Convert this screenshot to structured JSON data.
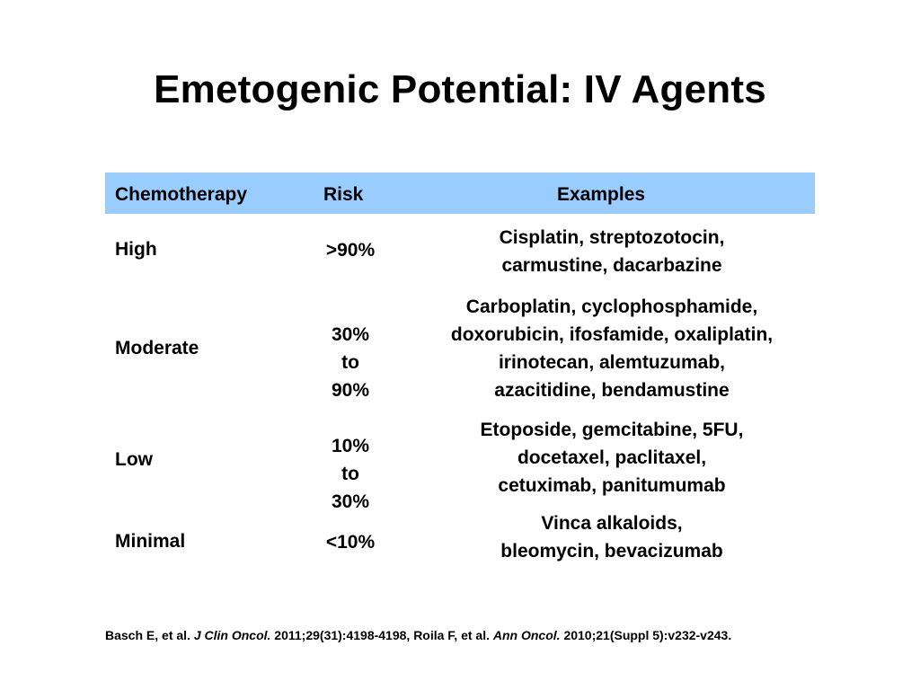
{
  "slide": {
    "title": "Emetogenic Potential: IV Agents"
  },
  "table": {
    "header_color": "#99ccff",
    "headers": {
      "chemotherapy": "Chemotherapy",
      "risk": "Risk",
      "examples": "Examples"
    },
    "rows": [
      {
        "level": "High",
        "risk": ">90%",
        "examples": "Cisplatin, streptozotocin,\ncarmustine, dacarbazine"
      },
      {
        "level": "Moderate",
        "risk": "30%\nto\n90%",
        "examples": "Carboplatin, cyclophosphamide,\ndoxorubicin, ifosfamide, oxaliplatin,\nirinotecan, alemtuzumab,\nazacitidine, bendamustine"
      },
      {
        "level": "Low",
        "risk": "10%\nto\n30%",
        "examples": "Etoposide, gemcitabine, 5FU,\ndocetaxel, paclitaxel,\ncetuximab, panitumumab"
      },
      {
        "level": "Minimal",
        "risk": "<10%",
        "examples": "Vinca alkaloids,\nbleomycin, bevacizumab"
      }
    ]
  },
  "citation": {
    "part1": "Basch E, et al. ",
    "journal1": "J Clin Oncol.",
    "part2": " 2011;29(31):4198-4198, Roila F, et al. ",
    "journal2": "Ann Oncol.",
    "part3": " 2010;21(Suppl 5):v232-v243."
  }
}
